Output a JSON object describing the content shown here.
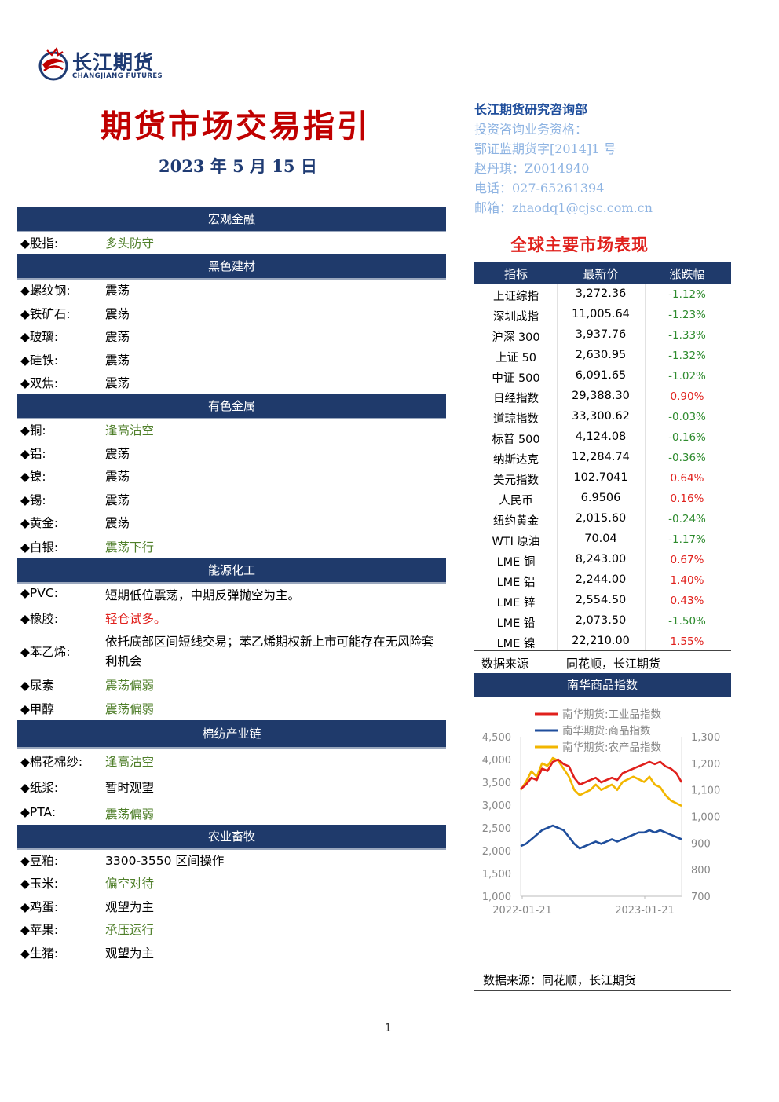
{
  "header": {
    "logo_cn": "长江期货",
    "logo_en": "CHANGJIANG FUTURES",
    "title": "期货市场交易指引",
    "date": "2023 年 5 月 15 日"
  },
  "contact": {
    "dept": "长江期货研究咨询部",
    "qual": "投资咨询业务资格：",
    "license": "鄂证监期货字[2014]1 号",
    "person": "赵丹琪：Z0014940",
    "phone": "电话：027-65261394",
    "email": "邮箱：zhaodq1@cjsc.com.cn"
  },
  "sections": {
    "macro": "宏观金融",
    "black": "黑色建材",
    "nonferrous": "有色金属",
    "energy": "能源化工",
    "cotton": "棉纺产业链",
    "agri": "农业畜牧"
  },
  "rows": {
    "stock": {
      "label": "◆股指:",
      "value": "多头防守"
    },
    "rebar": {
      "label": "◆螺纹钢:",
      "value": "震荡"
    },
    "iron": {
      "label": "◆铁矿石:",
      "value": "震荡"
    },
    "glass": {
      "label": "◆玻璃:",
      "value": "震荡"
    },
    "silicon": {
      "label": "◆硅铁:",
      "value": "震荡"
    },
    "coke": {
      "label": "◆双焦:",
      "value": "震荡"
    },
    "copper": {
      "label": "◆铜:",
      "value": "逢高沽空"
    },
    "aluminum": {
      "label": "◆铝:",
      "value": "震荡"
    },
    "nickel": {
      "label": "◆镍:",
      "value": "震荡"
    },
    "tin": {
      "label": "◆锡:",
      "value": "震荡"
    },
    "gold": {
      "label": "◆黄金:",
      "value": "震荡"
    },
    "silver": {
      "label": "◆白银:",
      "value": "震荡下行"
    },
    "pvc": {
      "label": "◆PVC:",
      "value": "短期低位震荡，中期反弹抛空为主。"
    },
    "rubber": {
      "label": "◆橡胶:",
      "value": "轻仓试多。"
    },
    "styrene": {
      "label": "◆苯乙烯:",
      "value": "依托底部区间短线交易；苯乙烯期权新上市可能存在无风险套利机会"
    },
    "urea": {
      "label": "◆尿素",
      "value": "震荡偏弱"
    },
    "methanol": {
      "label": "◆甲醇",
      "value": "震荡偏弱"
    },
    "cottonyarn": {
      "label": "◆棉花棉纱:",
      "value": "逢高沽空"
    },
    "pulp": {
      "label": "◆纸浆:",
      "value": "暂时观望"
    },
    "pta": {
      "label": "◆PTA:",
      "value": "震荡偏弱"
    },
    "soymeal": {
      "label": "◆豆粕:",
      "value": "3300-3550 区间操作"
    },
    "corn": {
      "label": "◆玉米:",
      "value": "偏空对待"
    },
    "egg": {
      "label": "◆鸡蛋:",
      "value": "观望为主"
    },
    "apple": {
      "label": "◆苹果:",
      "value": "承压运行"
    },
    "hog": {
      "label": "◆生猪:",
      "value": "观望为主"
    }
  },
  "market": {
    "title": "全球主要市场表现",
    "headers": [
      "指标",
      "最新价",
      "涨跌幅"
    ],
    "rows": [
      {
        "name": "上证综指",
        "price": "3,272.36",
        "chg": "-1.12%"
      },
      {
        "name": "深圳成指",
        "price": "11,005.64",
        "chg": "-1.23%"
      },
      {
        "name": "沪深 300",
        "price": "3,937.76",
        "chg": "-1.33%"
      },
      {
        "name": "上证 50",
        "price": "2,630.95",
        "chg": "-1.32%"
      },
      {
        "name": "中证 500",
        "price": "6,091.65",
        "chg": "-1.02%"
      },
      {
        "name": "日经指数",
        "price": "29,388.30",
        "chg": "0.90%"
      },
      {
        "name": "道琼指数",
        "price": "33,300.62",
        "chg": "-0.03%"
      },
      {
        "name": "标普 500",
        "price": "4,124.08",
        "chg": "-0.16%"
      },
      {
        "name": "纳斯达克",
        "price": "12,284.74",
        "chg": "-0.36%"
      },
      {
        "name": "美元指数",
        "price": "102.7041",
        "chg": "0.64%"
      },
      {
        "name": "人民币",
        "price": "6.9506",
        "chg": "0.16%"
      },
      {
        "name": "纽约黄金",
        "price": "2,015.60",
        "chg": "-0.24%"
      },
      {
        "name": "WTI 原油",
        "price": "70.04",
        "chg": "-1.17%"
      },
      {
        "name": "LME 铜",
        "price": "8,243.00",
        "chg": "0.67%"
      },
      {
        "name": "LME 铝",
        "price": "2,244.00",
        "chg": "1.40%"
      },
      {
        "name": "LME 锌",
        "price": "2,554.50",
        "chg": "0.43%"
      },
      {
        "name": "LME 铅",
        "price": "2,073.50",
        "chg": "-1.50%"
      },
      {
        "name": "LME 镍",
        "price": "22,210.00",
        "chg": "1.55%"
      }
    ],
    "source_label": "数据来源",
    "source_value": "同花顺，长江期货",
    "colors": {
      "negative": "#2e8b2e",
      "positive": "#e0201c"
    }
  },
  "nanhua": {
    "header": "南华商品指数",
    "source": "数据来源：同花顺，长江期货"
  },
  "chart_data": {
    "type": "line",
    "title": "",
    "x_ticks": [
      "2022-01-21",
      "2023-01-21"
    ],
    "y_left_ticks": [
      "4,500",
      "4,000",
      "3,500",
      "3,000",
      "2,500",
      "2,000",
      "1,500",
      "1,000"
    ],
    "y_right_ticks": [
      "1,300",
      "1,200",
      "1,100",
      "1,000",
      "900",
      "800",
      "700"
    ],
    "ylim_left": [
      1000,
      4500
    ],
    "ylim_right": [
      700,
      1300
    ],
    "legend_position": "top",
    "series": [
      {
        "name": "南华期货:工业品指数",
        "axis": "left",
        "color": "#e0201c",
        "values": [
          3350,
          3450,
          3600,
          3550,
          3800,
          3750,
          3950,
          4000,
          3900,
          3850,
          3600,
          3450,
          3500,
          3550,
          3600,
          3500,
          3550,
          3600,
          3550,
          3700,
          3750,
          3800,
          3850,
          3900,
          3950,
          3900,
          3950,
          3850,
          3800,
          3700,
          3500
        ]
      },
      {
        "name": "南华期货:商品指数",
        "axis": "left",
        "color": "#1f4e9c",
        "values": [
          2100,
          2150,
          2250,
          2350,
          2450,
          2500,
          2550,
          2500,
          2450,
          2300,
          2150,
          2050,
          2100,
          2150,
          2200,
          2150,
          2200,
          2250,
          2200,
          2250,
          2300,
          2350,
          2400,
          2400,
          2450,
          2400,
          2450,
          2400,
          2350,
          2300,
          2250
        ]
      },
      {
        "name": "南华期货:农产品指数",
        "axis": "right",
        "color": "#f2b600",
        "values": [
          1100,
          1130,
          1170,
          1150,
          1200,
          1190,
          1220,
          1210,
          1180,
          1150,
          1100,
          1080,
          1090,
          1100,
          1120,
          1100,
          1110,
          1120,
          1100,
          1130,
          1140,
          1150,
          1140,
          1130,
          1150,
          1120,
          1110,
          1080,
          1060,
          1050,
          1040
        ]
      }
    ]
  },
  "page_number": "1"
}
